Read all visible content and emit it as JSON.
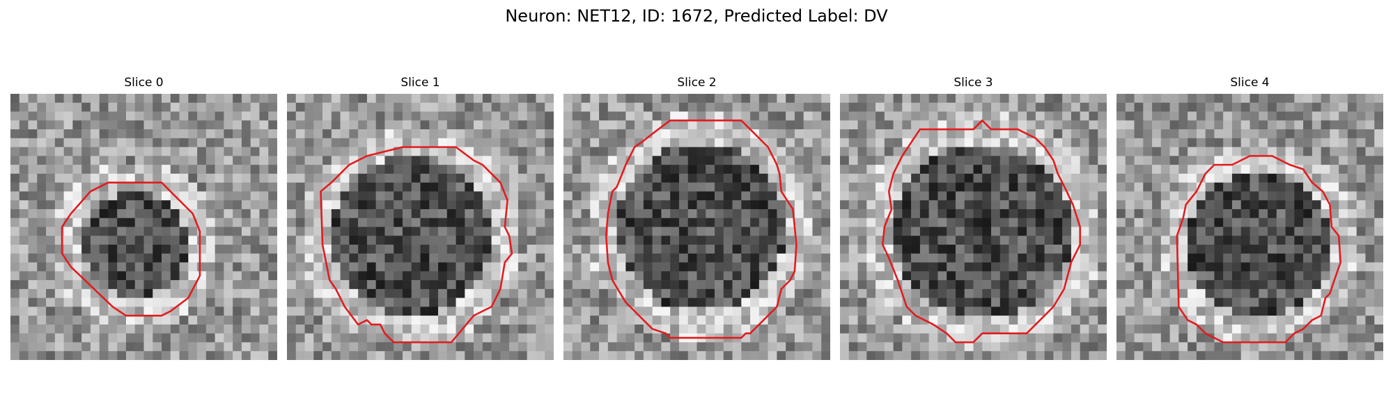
{
  "figure": {
    "title": "Neuron: NET12, ID: 1672, Predicted Label: DV"
  },
  "panels": [
    {
      "title": "Slice 0"
    },
    {
      "title": "Slice 1"
    },
    {
      "title": "Slice 2"
    },
    {
      "title": "Slice 3"
    },
    {
      "title": "Slice 4"
    }
  ],
  "colors": {
    "contour": "#e41a1c",
    "colormap": "gray"
  },
  "icons": [
    "grayscale-microscopy-image",
    "roi-contour"
  ]
}
